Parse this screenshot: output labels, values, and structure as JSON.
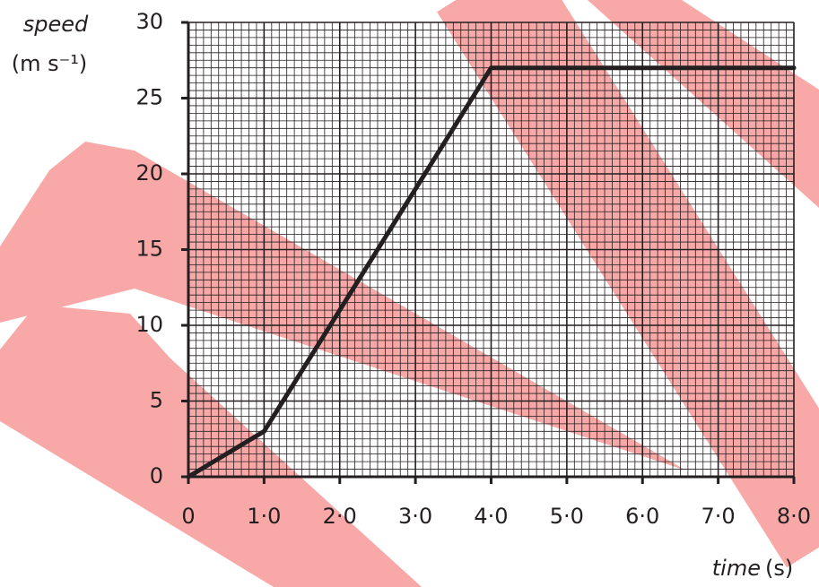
{
  "chart_data": {
    "type": "line",
    "y_label_quantity": "speed",
    "y_label_unit": "(m s⁻¹)",
    "x_label_quantity": "time",
    "x_label_unit": "(s)",
    "x": [
      0,
      1,
      4,
      8
    ],
    "series": [
      {
        "color": "#231f20",
        "values": [
          0,
          3,
          27,
          27
        ]
      }
    ],
    "xlim": [
      0,
      8
    ],
    "ylim": [
      0,
      30
    ],
    "xticks": [
      0,
      {
        "value": 1,
        "label": "1·0"
      },
      {
        "value": 2,
        "label": "2·0"
      },
      {
        "value": 3,
        "label": "3·0"
      },
      {
        "value": 4,
        "label": "4·0"
      },
      {
        "value": 5,
        "label": "5·0"
      },
      {
        "value": 6,
        "label": "6·0"
      },
      {
        "value": 7,
        "label": "7·0"
      },
      {
        "value": 8,
        "label": "8·0"
      }
    ],
    "yticks": [
      0,
      5,
      10,
      15,
      20,
      25,
      30
    ],
    "grid": true
  }
}
